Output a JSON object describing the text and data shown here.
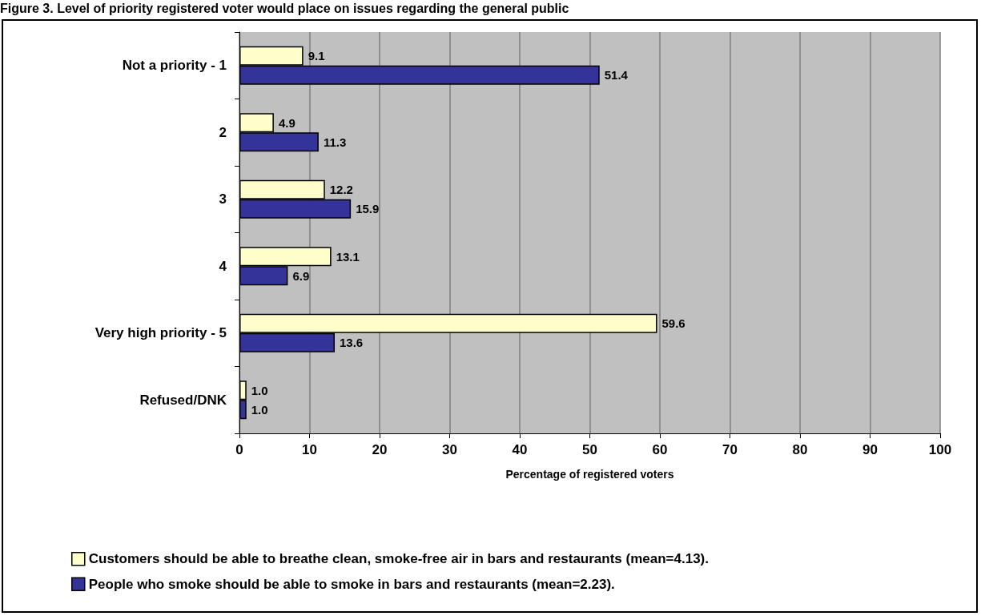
{
  "chart_data": {
    "type": "bar",
    "orientation": "horizontal",
    "title": "Figure 3. Level of priority registered voter would place on issues regarding the general public",
    "xlabel": "Percentage of registered voters",
    "categories": [
      "Not a priority - 1",
      "2",
      "3",
      "4",
      "Very high priority - 5",
      "Refused/DNK"
    ],
    "series": [
      {
        "name": "Customers should be able to breathe clean, smoke-free air in bars and restaurants (mean=4.13).",
        "color": "#ffffcc",
        "values": [
          9.1,
          4.9,
          12.2,
          13.1,
          59.6,
          1.0
        ],
        "value_labels": [
          "9.1",
          "4.9",
          "12.2",
          "13.1",
          "59.6",
          "1.0"
        ]
      },
      {
        "name": "People who smoke should be able to smoke in bars and restaurants (mean=2.23).",
        "color": "#333399",
        "values": [
          51.4,
          11.3,
          15.9,
          6.9,
          13.6,
          1.0
        ],
        "value_labels": [
          "51.4",
          "11.3",
          "15.9",
          "6.9",
          "13.6",
          "1.0"
        ]
      }
    ],
    "xlim": [
      0,
      100
    ],
    "xticks": [
      0,
      10,
      20,
      30,
      40,
      50,
      60,
      70,
      80,
      90,
      100
    ],
    "grid": "x",
    "legend": "bottom left"
  }
}
